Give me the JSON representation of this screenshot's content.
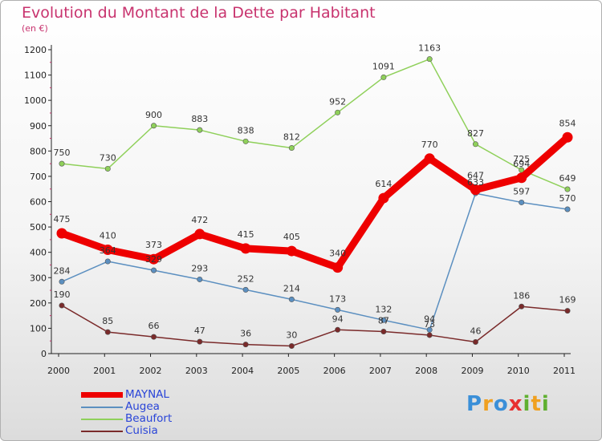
{
  "chart_data": {
    "type": "line",
    "title": "Evolution du Montant de la Dette par Habitant",
    "subtitle": "(en €)",
    "x": [
      "2000",
      "2001",
      "2002",
      "2003",
      "2004",
      "2005",
      "2006",
      "2007",
      "2008",
      "2009",
      "2010",
      "2011"
    ],
    "ylim": [
      0,
      1200
    ],
    "yticks": [
      "0",
      "100",
      "200",
      "300",
      "400",
      "500",
      "600",
      "700",
      "800",
      "900",
      "1000",
      "1100",
      "1200"
    ],
    "grid": false,
    "legend_position": "bottom-left",
    "series": [
      {
        "name": "MAYNAL",
        "color": "#ee0000",
        "values": [
          475,
          410,
          373,
          472,
          415,
          405,
          340,
          614,
          770,
          647,
          694,
          854
        ]
      },
      {
        "name": "Augea",
        "color": "#5b8fc0",
        "values": [
          284,
          364,
          329,
          293,
          252,
          214,
          173,
          132,
          94,
          633,
          597,
          570
        ]
      },
      {
        "name": "Beaufort",
        "color": "#8fd05a",
        "values": [
          750,
          730,
          900,
          883,
          838,
          812,
          952,
          1091,
          1163,
          827,
          725,
          649
        ]
      },
      {
        "name": "Cuisia",
        "color": "#7a2a2a",
        "values": [
          190,
          85,
          66,
          47,
          36,
          30,
          94,
          87,
          73,
          46,
          186,
          169
        ]
      }
    ]
  },
  "logo": {
    "letters": [
      "P",
      "r",
      "o",
      "x",
      "i",
      "t",
      "i"
    ]
  }
}
